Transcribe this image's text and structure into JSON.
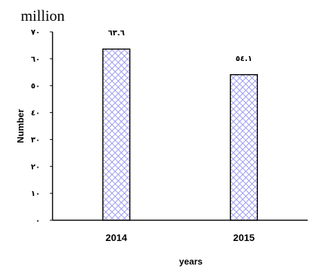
{
  "chart_data": {
    "type": "bar",
    "unit_label": "million",
    "categories": [
      "2014",
      "2015"
    ],
    "values": [
      63.6,
      54.1
    ],
    "data_labels": [
      "٦٣.٦",
      "٥٤.١"
    ],
    "xlabel": "years",
    "ylabel": "Number",
    "ylim": [
      0,
      70
    ],
    "yticks": [
      0,
      10,
      20,
      30,
      40,
      50,
      60,
      70
    ],
    "ytick_labels": [
      "٠",
      "١٠",
      "٢٠",
      "٣٠",
      "٤٠",
      "٥٠",
      "٦٠",
      "٧٠"
    ],
    "grid": false,
    "legend": "none",
    "bar_fill_pattern": "crosshatch",
    "hatch_color": "#9a9af0",
    "bar_border_color": "#000000"
  }
}
